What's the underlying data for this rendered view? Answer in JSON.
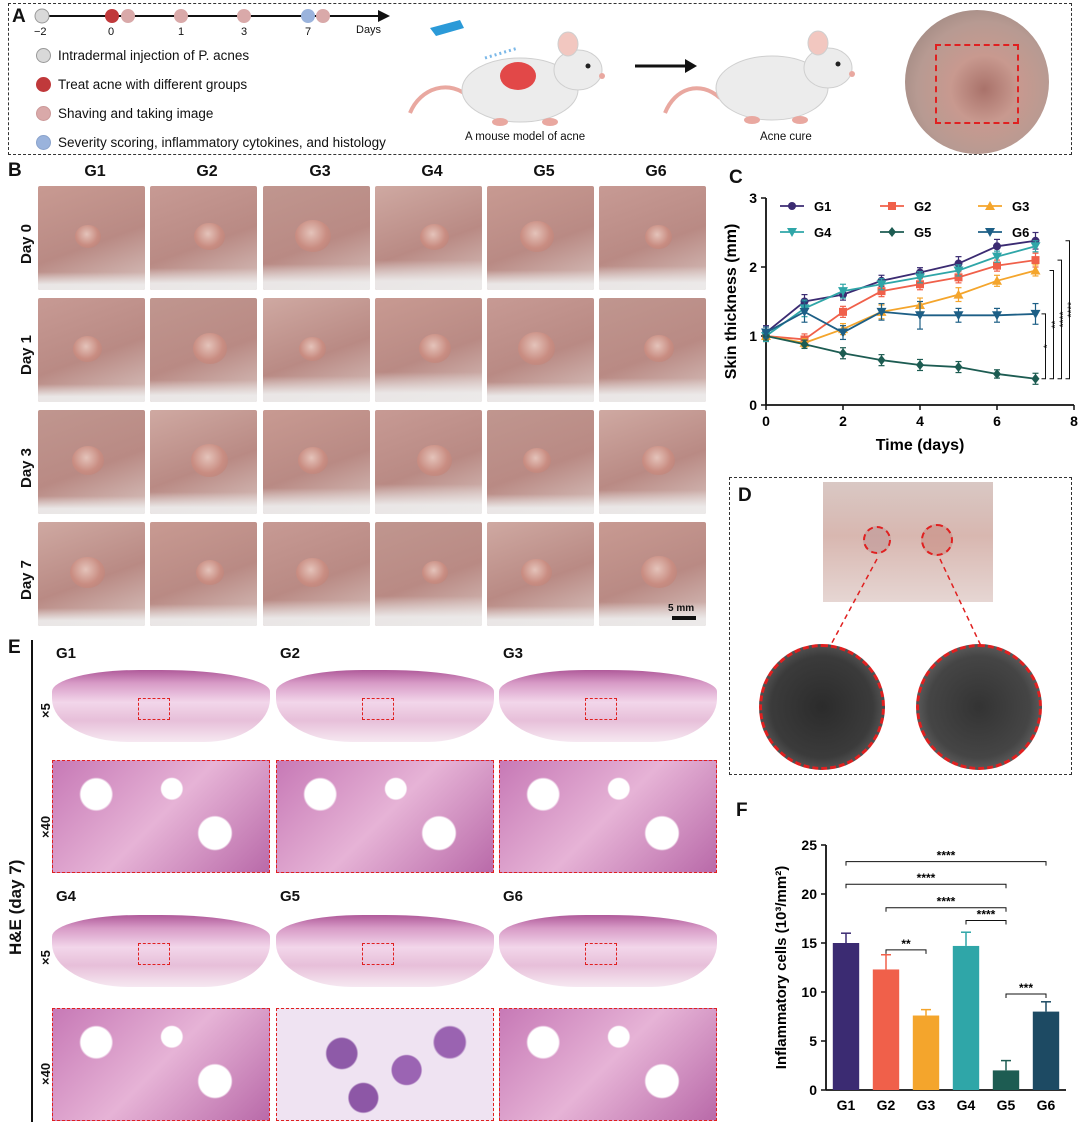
{
  "panels": {
    "A": "A",
    "B": "B",
    "C": "C",
    "D": "D",
    "E": "E",
    "F": "F"
  },
  "timeline": {
    "ticks": [
      "−2",
      "0",
      "1",
      "3",
      "7"
    ],
    "axis_label": "Days"
  },
  "legend_a": [
    {
      "label": "Intradermal injection of P. acnes",
      "color": "#d9d9d9"
    },
    {
      "label": "Treat acne with different groups",
      "color": "#c0393b"
    },
    {
      "label": "Shaving and taking image",
      "color": "#d9a9a9"
    },
    {
      "label": "Severity scoring, inflammatory cytokines, and histology",
      "color": "#9ab3dc"
    }
  ],
  "model_captions": {
    "left": "A mouse model of acne",
    "right": "Acne cure"
  },
  "photos": {
    "columns": [
      "G1",
      "G2",
      "G3",
      "G4",
      "G5",
      "G6"
    ],
    "rows": [
      "Day 0",
      "Day 1",
      "Day 3",
      "Day 7"
    ],
    "scale_bar": "5 mm"
  },
  "he": {
    "side_label": "H&E (day 7)",
    "mag_low": "×5",
    "mag_high": "×40",
    "groups": [
      "G1",
      "G2",
      "G3",
      "G4",
      "G5",
      "G6"
    ]
  },
  "chart_data": [
    {
      "type": "line",
      "panel": "C",
      "xlabel": "Time (days)",
      "ylabel": "Skin thickness (mm)",
      "xlim": [
        0,
        8
      ],
      "ylim": [
        0,
        3
      ],
      "xticks": [
        0,
        2,
        4,
        6,
        8
      ],
      "yticks": [
        0,
        1,
        2,
        3
      ],
      "x": [
        0,
        1,
        2,
        3,
        4,
        5,
        6,
        7
      ],
      "series": [
        {
          "name": "G1",
          "color": "#3b2b72",
          "marker": "circle",
          "values": [
            1.05,
            1.5,
            1.6,
            1.8,
            1.92,
            2.05,
            2.3,
            2.38
          ],
          "err": [
            0.1,
            0.1,
            0.08,
            0.08,
            0.07,
            0.1,
            0.1,
            0.12
          ]
        },
        {
          "name": "G2",
          "color": "#f0604a",
          "marker": "square",
          "values": [
            1.0,
            0.95,
            1.35,
            1.65,
            1.75,
            1.85,
            2.02,
            2.1
          ],
          "err": [
            0.08,
            0.08,
            0.08,
            0.08,
            0.08,
            0.08,
            0.08,
            0.1
          ]
        },
        {
          "name": "G3",
          "color": "#f4a52c",
          "marker": "triangle-up",
          "values": [
            1.0,
            0.9,
            1.1,
            1.35,
            1.45,
            1.6,
            1.8,
            1.95
          ],
          "err": [
            0.06,
            0.06,
            0.08,
            0.1,
            0.1,
            0.1,
            0.08,
            0.08
          ]
        },
        {
          "name": "G4",
          "color": "#2fa6a8",
          "marker": "triangle-down",
          "values": [
            1.0,
            1.4,
            1.65,
            1.75,
            1.85,
            1.95,
            2.15,
            2.3
          ],
          "err": [
            0.08,
            0.12,
            0.1,
            0.08,
            0.08,
            0.08,
            0.08,
            0.08
          ]
        },
        {
          "name": "G5",
          "color": "#1d5c52",
          "marker": "diamond",
          "values": [
            1.0,
            0.88,
            0.75,
            0.65,
            0.58,
            0.55,
            0.45,
            0.38
          ],
          "err": [
            0.06,
            0.06,
            0.08,
            0.08,
            0.08,
            0.08,
            0.06,
            0.08
          ]
        },
        {
          "name": "G6",
          "color": "#1d5f86",
          "marker": "triangle-down",
          "values": [
            1.05,
            1.35,
            1.05,
            1.35,
            1.3,
            1.3,
            1.3,
            1.32
          ],
          "err": [
            0.08,
            0.15,
            0.1,
            0.12,
            0.2,
            0.1,
            0.1,
            0.15
          ]
        }
      ],
      "significance": [
        "*",
        "**",
        "****",
        "****"
      ]
    },
    {
      "type": "bar",
      "panel": "F",
      "ylabel": "Inflammatory cells (10³/mm²)",
      "ylim": [
        0,
        25
      ],
      "yticks": [
        0,
        5,
        10,
        15,
        20,
        25
      ],
      "categories": [
        "G1",
        "G2",
        "G3",
        "G4",
        "G5",
        "G6"
      ],
      "values": [
        15.0,
        12.3,
        7.6,
        14.7,
        2.0,
        8.0
      ],
      "err": [
        1.0,
        1.5,
        0.6,
        1.4,
        1.0,
        1.0
      ],
      "colors": [
        "#3b2b72",
        "#f0604a",
        "#f4a52c",
        "#2fa6a8",
        "#1d5c52",
        "#1d4a63"
      ],
      "comparisons": [
        {
          "from": "G1",
          "to": "G6",
          "label": "****"
        },
        {
          "from": "G1",
          "to": "G5",
          "label": "****"
        },
        {
          "from": "G2",
          "to": "G5",
          "label": "****"
        },
        {
          "from": "G4",
          "to": "G5",
          "label": "****"
        },
        {
          "from": "G2",
          "to": "G3",
          "label": "**"
        },
        {
          "from": "G5",
          "to": "G6",
          "label": "***"
        }
      ]
    }
  ]
}
